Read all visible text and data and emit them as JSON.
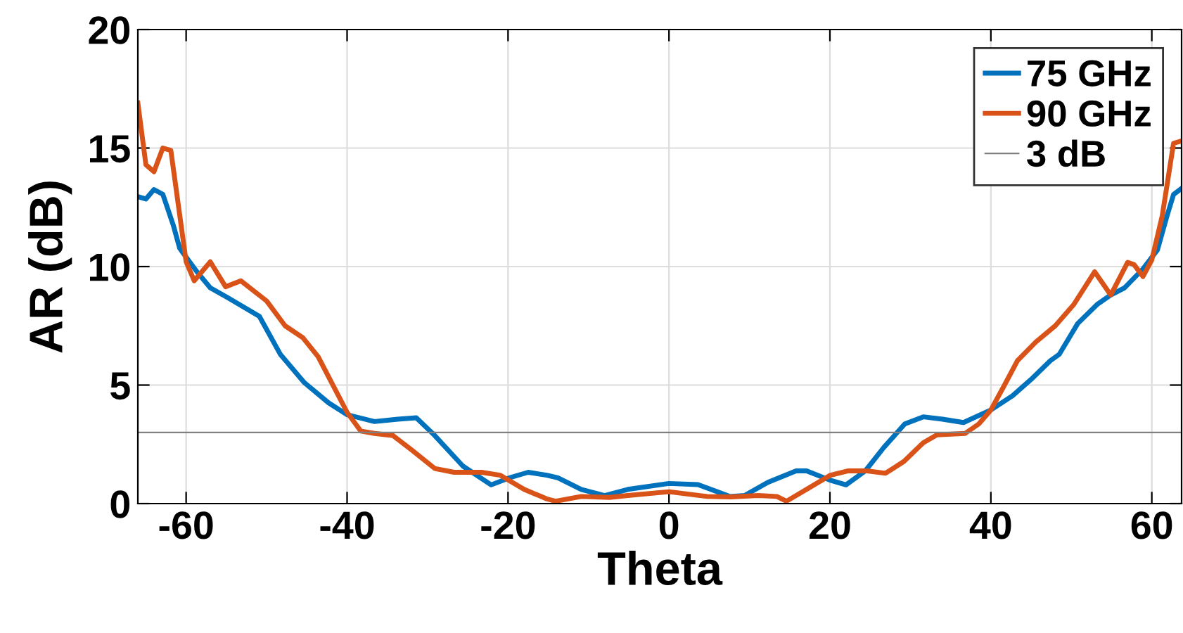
{
  "chart_data": {
    "type": "line",
    "xlabel": "Theta",
    "ylabel": "AR (dB)",
    "xlim": [
      -66,
      63.7
    ],
    "ylim": [
      0,
      20
    ],
    "xticks": [
      -60,
      -40,
      -20,
      0,
      20,
      40,
      60
    ],
    "yticks": [
      0,
      5,
      10,
      15,
      20
    ],
    "grid": true,
    "legend": "top right",
    "line_style": "solid",
    "marker": "none",
    "ref_lines": [
      {
        "axis": "y",
        "value": 3,
        "label": "3 dB",
        "color": "#808080"
      }
    ],
    "series": [
      {
        "name": "75 GHz",
        "color": "#0072bd",
        "x": [
          -66,
          -65,
          -64,
          -62.9,
          -61.6,
          -60.8,
          -58.7,
          -57,
          -54.9,
          -52.9,
          -50.9,
          -48.3,
          -45.3,
          -42.3,
          -40,
          -36.6,
          -33.7,
          -31.4,
          -29.1,
          -25.6,
          -22.1,
          -19.8,
          -17.5,
          -15.2,
          -13.8,
          -10.9,
          -8,
          -5.1,
          0,
          3.6,
          7.6,
          9.4,
          12.3,
          15.8,
          17.1,
          20,
          22,
          24.4,
          26.7,
          29.3,
          31.6,
          34,
          36.6,
          40,
          42.7,
          45,
          47.4,
          48.5,
          50.8,
          53.2,
          54.9,
          56.6,
          58.9,
          60.7,
          61.9,
          62.7,
          63.7
        ],
        "values": [
          12.95,
          12.85,
          13.25,
          13.05,
          11.75,
          10.77,
          9.8,
          9.1,
          8.7,
          8.3,
          7.9,
          6.3,
          5.1,
          4.25,
          3.75,
          3.46,
          3.56,
          3.62,
          2.87,
          1.58,
          0.79,
          1.09,
          1.32,
          1.2,
          1.09,
          0.6,
          0.34,
          0.6,
          0.85,
          0.8,
          0.3,
          0.34,
          0.9,
          1.38,
          1.38,
          0.99,
          0.79,
          1.38,
          2.37,
          3.36,
          3.66,
          3.56,
          3.42,
          3.95,
          4.55,
          5.24,
          6.03,
          6.3,
          7.6,
          8.4,
          8.8,
          9.1,
          9.9,
          10.7,
          12.15,
          13.04,
          13.3
        ]
      },
      {
        "name": "90 GHz",
        "color": "#d95319",
        "x": [
          -66,
          -65,
          -64,
          -62.9,
          -61.9,
          -60,
          -59,
          -57,
          -55.1,
          -53.2,
          -50,
          -47.7,
          -45.5,
          -43.6,
          -40,
          -38.3,
          -36.6,
          -34.3,
          -32,
          -29.1,
          -26.7,
          -23.3,
          -21,
          -18,
          -15.2,
          -14.1,
          -10.9,
          -7.4,
          -5.1,
          0,
          4.75,
          7.65,
          11.1,
          13.4,
          14.6,
          17.1,
          20,
          22.3,
          24.6,
          26.9,
          29.2,
          31.6,
          33.3,
          36.8,
          38.5,
          40,
          41.6,
          43.3,
          45.6,
          48,
          50.3,
          52.9,
          54.9,
          57,
          57.8,
          58.9,
          60,
          61.3,
          62.7,
          63.7
        ],
        "values": [
          16.9,
          14.3,
          14.0,
          15.0,
          14.9,
          10.2,
          9.4,
          10.2,
          9.15,
          9.4,
          8.55,
          7.5,
          7.0,
          6.2,
          3.85,
          3.06,
          2.96,
          2.87,
          2.27,
          1.48,
          1.32,
          1.32,
          1.2,
          0.6,
          0.2,
          0.1,
          0.3,
          0.26,
          0.34,
          0.5,
          0.3,
          0.28,
          0.34,
          0.3,
          0.1,
          0.6,
          1.19,
          1.38,
          1.38,
          1.28,
          1.78,
          2.57,
          2.9,
          2.96,
          3.36,
          3.95,
          4.94,
          6.03,
          6.82,
          7.5,
          8.4,
          9.78,
          8.8,
          10.18,
          10.08,
          9.58,
          10.28,
          12.15,
          15.2,
          15.3
        ]
      }
    ]
  }
}
